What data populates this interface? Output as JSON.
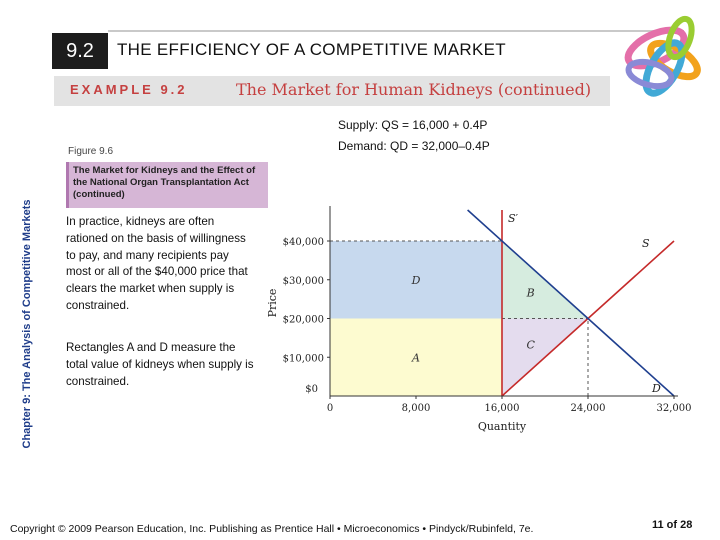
{
  "header": {
    "section_number": "9.2",
    "title": "THE EFFICIENCY OF A COMPETITIVE MARKET"
  },
  "example": {
    "label": "EXAMPLE 9.2",
    "title": "The Market for Human Kidneys (continued)"
  },
  "side_caption": "Chapter 9: The Analysis of Competitive Markets",
  "equations": {
    "supply": "Supply: QS = 16,000 + 0.4P",
    "demand": "Demand: QD = 32,000–0.4P"
  },
  "figure": {
    "label": "Figure 9.6",
    "caption": "The Market for Kidneys and the Effect of the National Organ Transplantation Act (continued)"
  },
  "body": {
    "paragraph_1": "In practice, kidneys are often rationed on the basis of willingness to pay, and many recipients pay most or all of the $40,000 price that clears the market when supply is constrained.",
    "paragraph_2": "Rectangles A and D measure the total value of kidneys when supply is constrained."
  },
  "colors": {
    "rect_D": "#c7d9ee",
    "rect_A": "#fdfbd0",
    "triangle_B": "#d6ecdf",
    "triangle_C": "#e4dcee",
    "demand_line": "#1f3f8f",
    "supply_line": "#c52a2a",
    "section_box": "#1d1d1d",
    "accent": "#c54040"
  },
  "chart_data": {
    "type": "line",
    "xlabel": "Quantity",
    "ylabel": "Price",
    "xlim": [
      0,
      32000
    ],
    "ylim": [
      0,
      48000
    ],
    "x_ticks": [
      {
        "value": 0,
        "label": "0"
      },
      {
        "value": 8000,
        "label": "8,000"
      },
      {
        "value": 16000,
        "label": "16,000"
      },
      {
        "value": 24000,
        "label": "24,000"
      },
      {
        "value": 32000,
        "label": "32,000"
      }
    ],
    "y_ticks": [
      {
        "value": 10000,
        "label": "$10,000"
      },
      {
        "value": 20000,
        "label": "$20,000"
      },
      {
        "value": 30000,
        "label": "$30,000"
      },
      {
        "value": 40000,
        "label": "$40,000"
      }
    ],
    "y_zero_label": "$0",
    "series": [
      {
        "name": "S′",
        "kind": "vertical",
        "x": 16000,
        "y_range": [
          0,
          48000
        ]
      },
      {
        "name": "S",
        "kind": "line",
        "points": [
          [
            16000,
            0
          ],
          [
            32000,
            40000
          ]
        ]
      },
      {
        "name": "D",
        "kind": "line",
        "points": [
          [
            12800,
            48000
          ],
          [
            32000,
            0
          ]
        ]
      }
    ],
    "regions": [
      {
        "label": "D",
        "points": [
          [
            0,
            20000
          ],
          [
            16000,
            20000
          ],
          [
            16000,
            40000
          ],
          [
            0,
            40000
          ]
        ],
        "color_key": "rect_D"
      },
      {
        "label": "A",
        "points": [
          [
            0,
            0
          ],
          [
            16000,
            0
          ],
          [
            16000,
            20000
          ],
          [
            0,
            20000
          ]
        ],
        "color_key": "rect_A"
      },
      {
        "label": "B",
        "points": [
          [
            16000,
            20000
          ],
          [
            16000,
            40000
          ],
          [
            24000,
            20000
          ]
        ],
        "color_key": "triangle_B"
      },
      {
        "label": "C",
        "points": [
          [
            16000,
            0
          ],
          [
            16000,
            20000
          ],
          [
            24000,
            20000
          ]
        ],
        "color_key": "triangle_C"
      }
    ],
    "dashed_lines": [
      {
        "y": 40000,
        "x_range": [
          0,
          16000
        ]
      },
      {
        "y": 20000,
        "x_range": [
          16000,
          24000
        ]
      },
      {
        "x": 24000,
        "y_range": [
          0,
          20000
        ]
      }
    ]
  },
  "footer": {
    "text": "Copyright © 2009 Pearson Education, Inc. Publishing as Prentice Hall • Microeconomics • Pindyck/Rubinfeld, 7e.",
    "page": "11 of 28"
  }
}
